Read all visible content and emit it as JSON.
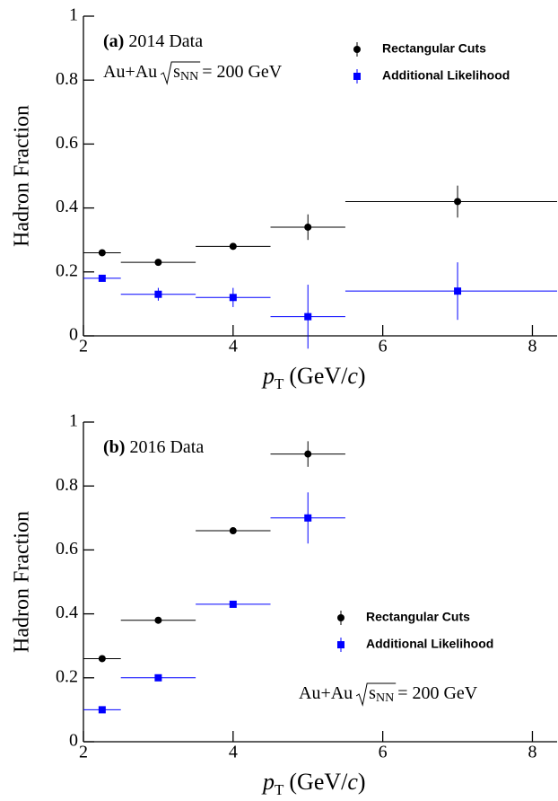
{
  "chart_data": [
    {
      "type": "errorbar",
      "panel_label": "(a)",
      "title": "2014 Data",
      "annotation": {
        "prefix": "Au+Au",
        "radicand": "s",
        "subscript": "NN",
        "suffix": "= 200 GeV"
      },
      "xlabel": {
        "main": "p",
        "sub": "T",
        "open": "(GeV/",
        "var": "c",
        "close": ")"
      },
      "ylabel": "Hadron Fraction",
      "x": [
        2.25,
        3,
        4,
        5,
        7
      ],
      "series": [
        {
          "name": "Rectangular Cuts",
          "color": "#000000",
          "marker": "circle",
          "values": [
            0.26,
            0.23,
            0.28,
            0.34,
            0.42
          ],
          "yerr": [
            0.005,
            0.005,
            0.005,
            0.04,
            0.05
          ],
          "xerr": [
            0.25,
            0.5,
            0.5,
            0.5,
            1.5
          ]
        },
        {
          "name": "Additional Likelihood",
          "color": "#0000ff",
          "marker": "square",
          "values": [
            0.18,
            0.13,
            0.12,
            0.06,
            0.14
          ],
          "yerr": [
            0.005,
            0.02,
            0.03,
            0.1,
            0.09
          ],
          "xerr": [
            0.25,
            0.5,
            0.5,
            0.5,
            1.5
          ]
        }
      ],
      "xlim": [
        2,
        8.33
      ],
      "ylim": [
        0,
        1
      ],
      "xticks": [
        2,
        4,
        6,
        8
      ],
      "yticks": [
        0,
        0.2,
        0.4,
        0.6,
        0.8,
        1
      ],
      "legend_position": "upper right"
    },
    {
      "type": "errorbar",
      "panel_label": "(b)",
      "title": "2016 Data",
      "annotation": {
        "prefix": "Au+Au",
        "radicand": "s",
        "subscript": "NN",
        "suffix": "= 200 GeV"
      },
      "xlabel": {
        "main": "p",
        "sub": "T",
        "open": "(GeV/",
        "var": "c",
        "close": ")"
      },
      "ylabel": "Hadron Fraction",
      "x": [
        2.25,
        3,
        4,
        5
      ],
      "series": [
        {
          "name": "Rectangular Cuts",
          "color": "#000000",
          "marker": "circle",
          "values": [
            0.26,
            0.38,
            0.66,
            0.9
          ],
          "yerr": [
            0.005,
            0.005,
            0.005,
            0.04
          ],
          "xerr": [
            0.25,
            0.5,
            0.5,
            0.5
          ]
        },
        {
          "name": "Additional Likelihood",
          "color": "#0000ff",
          "marker": "square",
          "values": [
            0.1,
            0.2,
            0.43,
            0.7
          ],
          "yerr": [
            0.005,
            0.005,
            0.005,
            0.08
          ],
          "xerr": [
            0.25,
            0.5,
            0.5,
            0.5
          ]
        }
      ],
      "xlim": [
        2,
        8.33
      ],
      "ylim": [
        0,
        1
      ],
      "xticks": [
        2,
        4,
        6,
        8
      ],
      "yticks": [
        0,
        0.2,
        0.4,
        0.6,
        0.8,
        1
      ],
      "legend_position": "center right"
    }
  ]
}
